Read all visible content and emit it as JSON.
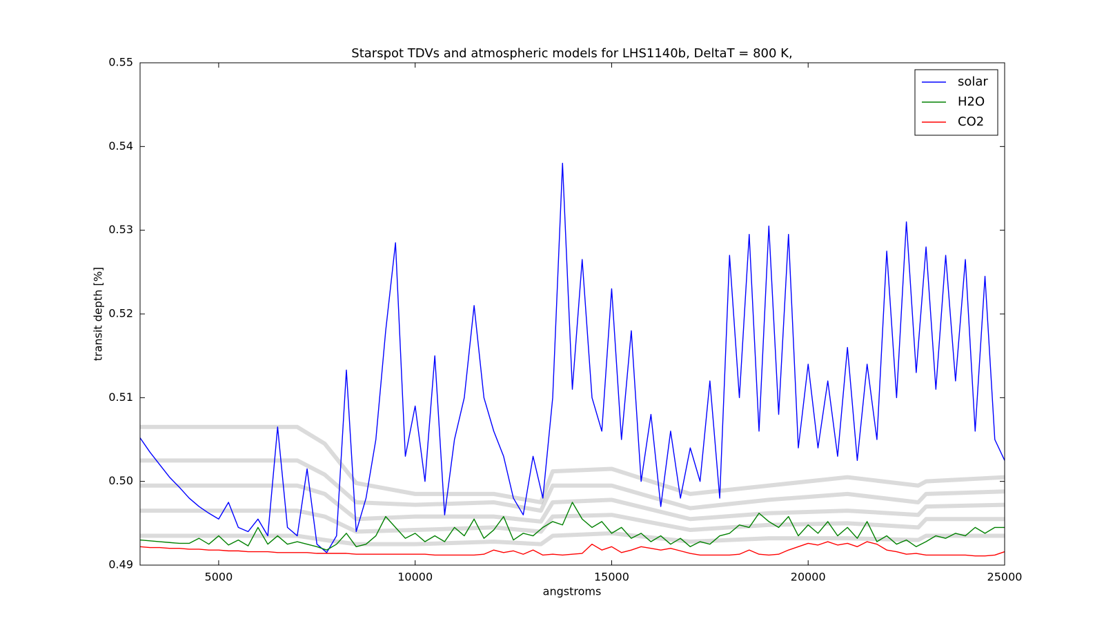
{
  "chart_data": {
    "type": "line",
    "title": "Starspot TDVs and atmospheric models for LHS1140b, DeltaT = 800 K,",
    "xlabel": "angstroms",
    "ylabel": "transit depth [%]",
    "xlim": [
      3000,
      25000
    ],
    "ylim": [
      0.49,
      0.55
    ],
    "xticks": [
      5000,
      10000,
      15000,
      20000,
      25000
    ],
    "yticks": [
      0.49,
      {
        "value": 0.5,
        "label": "0.50"
      },
      0.51,
      0.52,
      0.53,
      0.54,
      0.55
    ],
    "legend": "upper right",
    "grid": false,
    "x": [
      3000,
      3250,
      3500,
      3750,
      4000,
      4250,
      4500,
      4750,
      5000,
      5250,
      5500,
      5750,
      6000,
      6250,
      6500,
      6750,
      7000,
      7250,
      7500,
      7750,
      8000,
      8250,
      8500,
      8750,
      9000,
      9250,
      9500,
      9750,
      10000,
      10250,
      10500,
      10750,
      11000,
      11250,
      11500,
      11750,
      12000,
      12250,
      12500,
      12750,
      13000,
      13250,
      13500,
      13750,
      14000,
      14250,
      14500,
      14750,
      15000,
      15250,
      15500,
      15750,
      16000,
      16250,
      16500,
      16750,
      17000,
      17250,
      17500,
      17750,
      18000,
      18250,
      18500,
      18750,
      19000,
      19250,
      19500,
      19750,
      20000,
      20250,
      20500,
      20750,
      21000,
      21250,
      21500,
      21750,
      22000,
      22250,
      22500,
      22750,
      23000,
      23250,
      23500,
      23750,
      24000,
      24250,
      24500,
      24750,
      25000
    ],
    "series": [
      {
        "color": "#999999",
        "x": [
          3000,
          5000,
          7000,
          7700,
          8500,
          10000,
          12000,
          13200,
          13500,
          15000,
          17000,
          19000,
          21000,
          22800,
          23000,
          25000
        ],
        "values": [
          0.5065,
          0.5065,
          0.5065,
          0.5045,
          0.4998,
          0.4985,
          0.4985,
          0.4975,
          0.5012,
          0.5015,
          0.4985,
          0.4995,
          0.5005,
          0.4995,
          0.5,
          0.5005
        ]
      },
      {
        "color": "#999999",
        "x": [
          3000,
          5000,
          7000,
          7700,
          8500,
          10000,
          12000,
          13200,
          13500,
          15000,
          17000,
          19000,
          21000,
          22800,
          23000,
          25000
        ],
        "values": [
          0.5025,
          0.5025,
          0.5025,
          0.5008,
          0.4975,
          0.4972,
          0.4975,
          0.4965,
          0.4995,
          0.4995,
          0.4968,
          0.4978,
          0.4985,
          0.4975,
          0.4985,
          0.4988
        ]
      },
      {
        "color": "#999999",
        "x": [
          3000,
          5000,
          7000,
          7700,
          8500,
          10000,
          12000,
          13200,
          13500,
          15000,
          17000,
          19000,
          21000,
          22800,
          23000,
          25000
        ],
        "values": [
          0.4995,
          0.4995,
          0.4995,
          0.4985,
          0.4955,
          0.4958,
          0.4958,
          0.4952,
          0.4975,
          0.4978,
          0.4955,
          0.4962,
          0.4965,
          0.496,
          0.497,
          0.4972
        ]
      },
      {
        "color": "#999999",
        "x": [
          3000,
          5000,
          7000,
          7700,
          8500,
          10000,
          12000,
          13200,
          13500,
          15000,
          17000,
          19000,
          21000,
          22800,
          23000,
          25000
        ],
        "values": [
          0.4965,
          0.4965,
          0.4965,
          0.4958,
          0.494,
          0.4942,
          0.4945,
          0.494,
          0.4958,
          0.496,
          0.4942,
          0.4948,
          0.495,
          0.4945,
          0.4955,
          0.4955
        ]
      },
      {
        "color": "#999999",
        "x": [
          3000,
          5000,
          7000,
          7700,
          8500,
          10000,
          12000,
          13200,
          13500,
          15000,
          17000,
          19000,
          21000,
          22800,
          23000,
          25000
        ],
        "values": [
          0.4935,
          0.4935,
          0.4935,
          0.493,
          0.4925,
          0.4925,
          0.4928,
          0.4925,
          0.4935,
          0.4938,
          0.4928,
          0.4932,
          0.4932,
          0.493,
          0.4935,
          0.4935
        ]
      },
      {
        "name": "solar",
        "color": "#0000ff",
        "values": [
          0.5052,
          0.5035,
          0.502,
          0.5005,
          0.4993,
          0.498,
          0.497,
          0.4962,
          0.4955,
          0.4975,
          0.4945,
          0.494,
          0.4955,
          0.4935,
          0.5065,
          0.4945,
          0.4935,
          0.5015,
          0.4925,
          0.4915,
          0.4935,
          0.5133,
          0.494,
          0.498,
          0.505,
          0.518,
          0.5285,
          0.503,
          0.509,
          0.5,
          0.515,
          0.496,
          0.505,
          0.51,
          0.521,
          0.51,
          0.506,
          0.503,
          0.498,
          0.496,
          0.503,
          0.498,
          0.51,
          0.538,
          0.511,
          0.5265,
          0.51,
          0.506,
          0.523,
          0.505,
          0.518,
          0.5,
          0.508,
          0.497,
          0.506,
          0.498,
          0.504,
          0.5,
          0.512,
          0.498,
          0.527,
          0.51,
          0.5295,
          0.506,
          0.5305,
          0.508,
          0.5295,
          0.504,
          0.514,
          0.504,
          0.512,
          0.503,
          0.516,
          0.5025,
          0.514,
          0.505,
          0.5275,
          0.51,
          0.531,
          0.513,
          0.528,
          0.511,
          0.527,
          0.512,
          0.5265,
          0.506,
          0.5245,
          0.505,
          0.5025
        ]
      },
      {
        "name": "H2O",
        "color": "#008000",
        "values": [
          0.493,
          0.4929,
          0.4928,
          0.4927,
          0.4926,
          0.4926,
          0.4932,
          0.4925,
          0.4935,
          0.4924,
          0.493,
          0.4923,
          0.4945,
          0.4925,
          0.4935,
          0.4925,
          0.4928,
          0.4925,
          0.4922,
          0.4918,
          0.4925,
          0.4938,
          0.4922,
          0.4925,
          0.4935,
          0.4958,
          0.4945,
          0.4932,
          0.4938,
          0.4928,
          0.4935,
          0.4928,
          0.4945,
          0.4935,
          0.4955,
          0.4932,
          0.4942,
          0.4958,
          0.493,
          0.4938,
          0.4935,
          0.4945,
          0.4952,
          0.4948,
          0.4975,
          0.4955,
          0.4945,
          0.4952,
          0.4938,
          0.4945,
          0.4932,
          0.4938,
          0.4928,
          0.4935,
          0.4925,
          0.4932,
          0.4922,
          0.4928,
          0.4925,
          0.4935,
          0.4938,
          0.4948,
          0.4945,
          0.4962,
          0.4952,
          0.4945,
          0.4958,
          0.4935,
          0.4948,
          0.4938,
          0.4952,
          0.4935,
          0.4945,
          0.4932,
          0.4952,
          0.4928,
          0.4935,
          0.4925,
          0.493,
          0.4922,
          0.4928,
          0.4935,
          0.4932,
          0.4938,
          0.4935,
          0.4945,
          0.4938,
          0.4945,
          0.4945
        ]
      },
      {
        "name": "CO2",
        "color": "#ff0000",
        "values": [
          0.4922,
          0.4921,
          0.4921,
          0.492,
          0.492,
          0.4919,
          0.4919,
          0.4918,
          0.4918,
          0.4917,
          0.4917,
          0.4916,
          0.4916,
          0.4916,
          0.4915,
          0.4915,
          0.4915,
          0.4915,
          0.4914,
          0.4914,
          0.4914,
          0.4914,
          0.4913,
          0.4913,
          0.4913,
          0.4913,
          0.4913,
          0.4913,
          0.4913,
          0.4913,
          0.4912,
          0.4912,
          0.4912,
          0.4912,
          0.4912,
          0.4913,
          0.4918,
          0.4915,
          0.4917,
          0.4913,
          0.4918,
          0.4912,
          0.4913,
          0.4912,
          0.4913,
          0.4914,
          0.4925,
          0.4918,
          0.4922,
          0.4915,
          0.4918,
          0.4922,
          0.492,
          0.4918,
          0.492,
          0.4917,
          0.4914,
          0.4912,
          0.4912,
          0.4912,
          0.4912,
          0.4913,
          0.4918,
          0.4913,
          0.4912,
          0.4913,
          0.4918,
          0.4922,
          0.4926,
          0.4924,
          0.4928,
          0.4924,
          0.4926,
          0.4922,
          0.4928,
          0.4925,
          0.4918,
          0.4916,
          0.4913,
          0.4914,
          0.4912,
          0.4912,
          0.4912,
          0.4912,
          0.4912,
          0.4911,
          0.4911,
          0.4912,
          0.4916
        ]
      }
    ]
  }
}
